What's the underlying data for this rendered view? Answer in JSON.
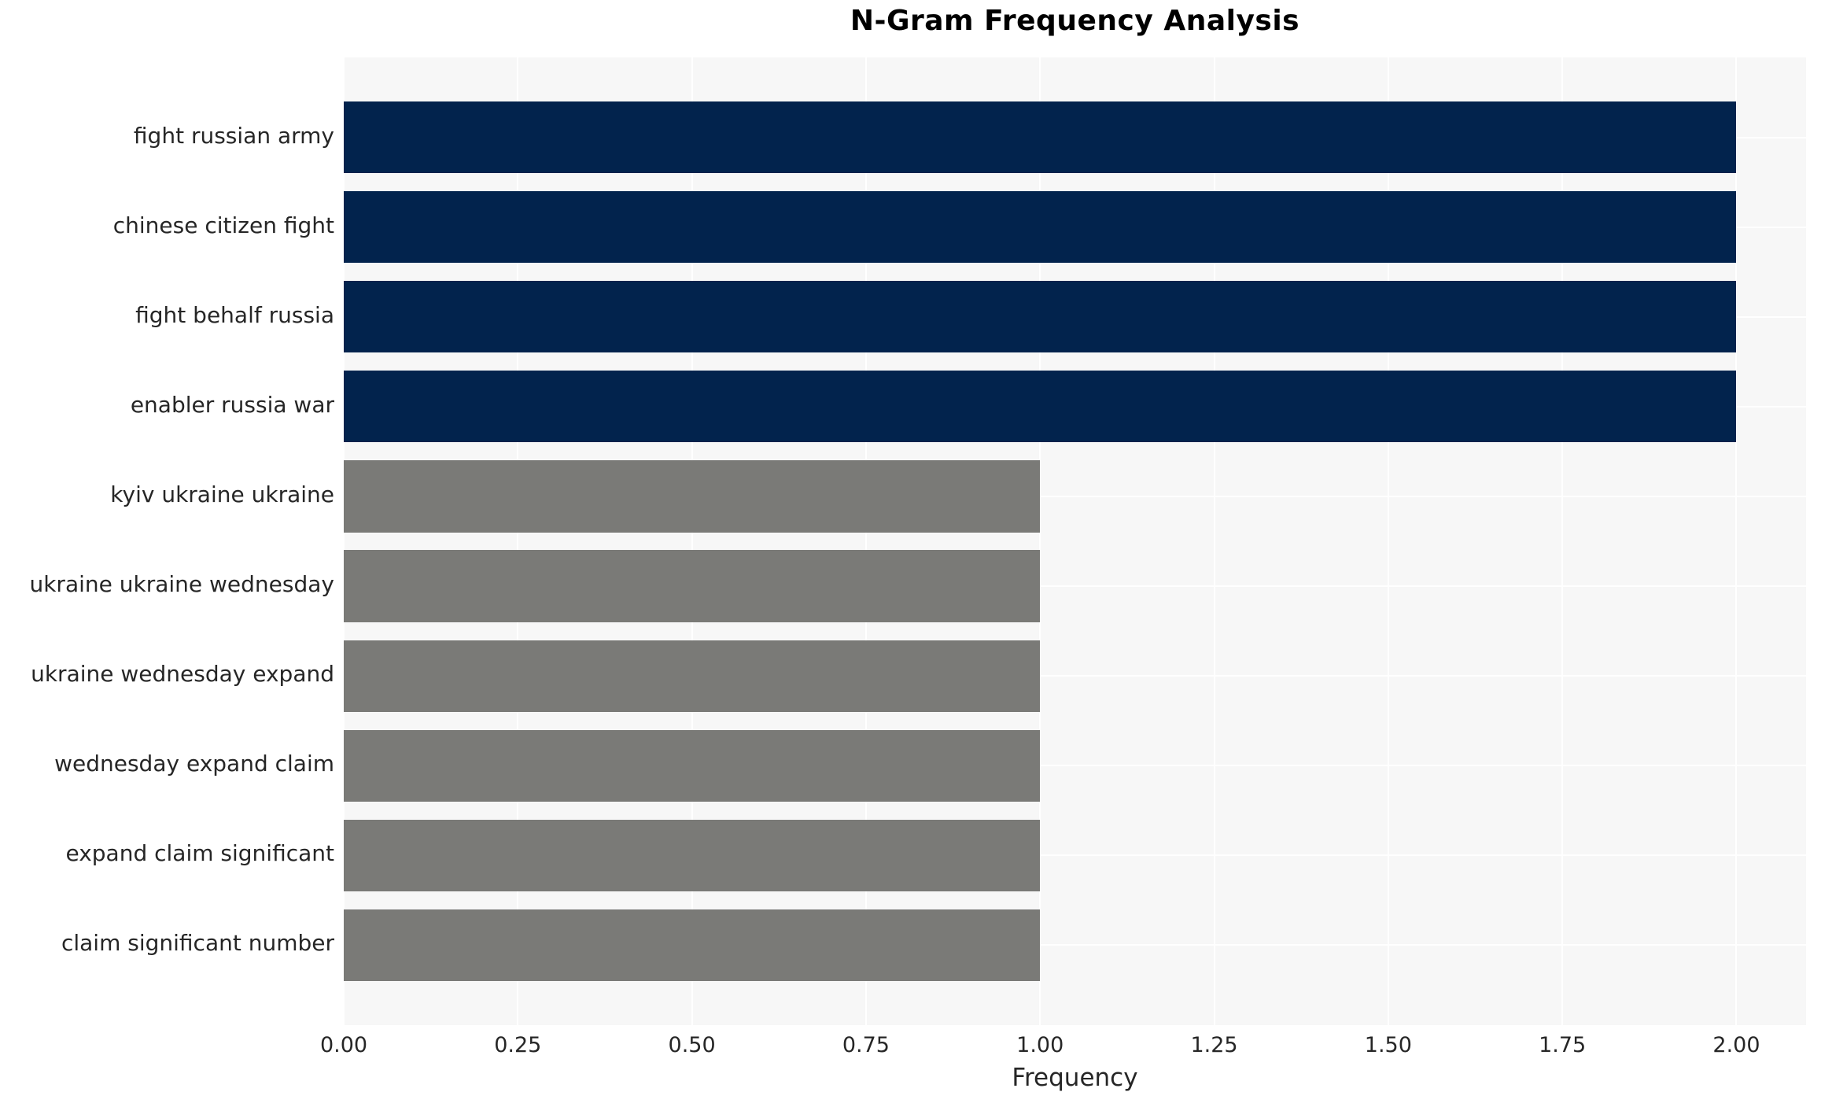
{
  "chart_data": {
    "type": "bar",
    "orientation": "horizontal",
    "title": "N-Gram Frequency Analysis",
    "xlabel": "Frequency",
    "ylabel": "",
    "categories": [
      "fight russian army",
      "chinese citizen fight",
      "fight behalf russia",
      "enabler russia war",
      "kyiv ukraine ukraine",
      "ukraine ukraine wednesday",
      "ukraine wednesday expand",
      "wednesday expand claim",
      "expand claim significant",
      "claim significant number"
    ],
    "values": [
      2.0,
      2.0,
      2.0,
      2.0,
      1.0,
      1.0,
      1.0,
      1.0,
      1.0,
      1.0
    ],
    "bar_colors": [
      "#02234d",
      "#02234d",
      "#02234d",
      "#02234d",
      "#7a7a77",
      "#7a7a77",
      "#7a7a77",
      "#7a7a77",
      "#7a7a77",
      "#7a7a77"
    ],
    "xtick_labels": [
      "0.00",
      "0.25",
      "0.50",
      "0.75",
      "1.00",
      "1.25",
      "1.50",
      "1.75",
      "2.00"
    ],
    "xtick_values": [
      0,
      0.25,
      0.5,
      0.75,
      1.0,
      1.25,
      1.5,
      1.75,
      2.0
    ],
    "xlim": [
      0,
      2.1
    ],
    "grid": true,
    "legend": null,
    "colors": {
      "high_frequency_bar": "#02234d",
      "low_frequency_bar": "#7a7a77",
      "plot_background": "#f7f7f7",
      "grid_line": "#ffffff",
      "title_text": "#000000",
      "tick_text": "#262626"
    }
  }
}
